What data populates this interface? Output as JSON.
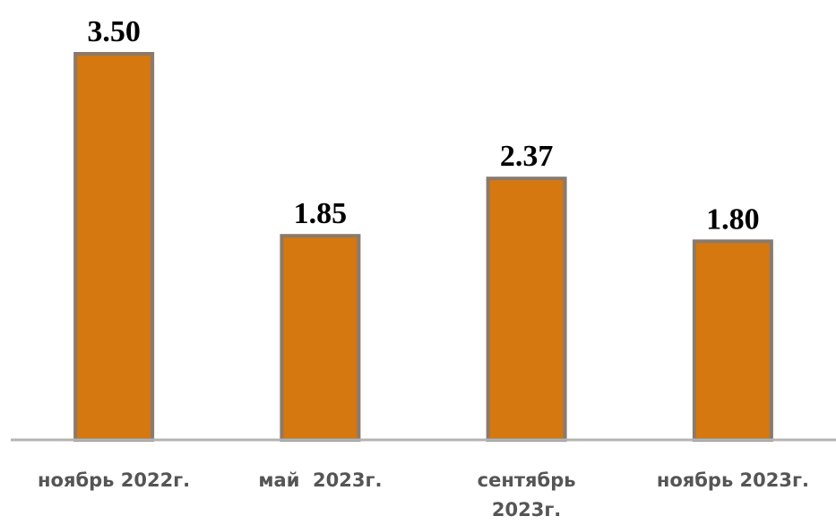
{
  "chart_data": {
    "type": "bar",
    "title": "",
    "xlabel": "",
    "ylabel": "",
    "categories": [
      [
        "ноябрь 2022г."
      ],
      [
        "май  2023г."
      ],
      [
        "сентябрь",
        "2023г."
      ],
      [
        "ноябрь 2023г."
      ]
    ],
    "values": [
      3.5,
      1.85,
      2.37,
      1.8
    ],
    "value_labels": [
      "3.50",
      "1.85",
      "2.37",
      "1.80"
    ],
    "ylim": [
      0,
      3.5
    ],
    "grid": false,
    "legend": "none",
    "colors": {
      "bar_fill": "#D4780F",
      "bar_border": "#8A7A6E",
      "axis": "#B4B4B4",
      "value_text": "#000000",
      "category_text": "#555555"
    }
  }
}
